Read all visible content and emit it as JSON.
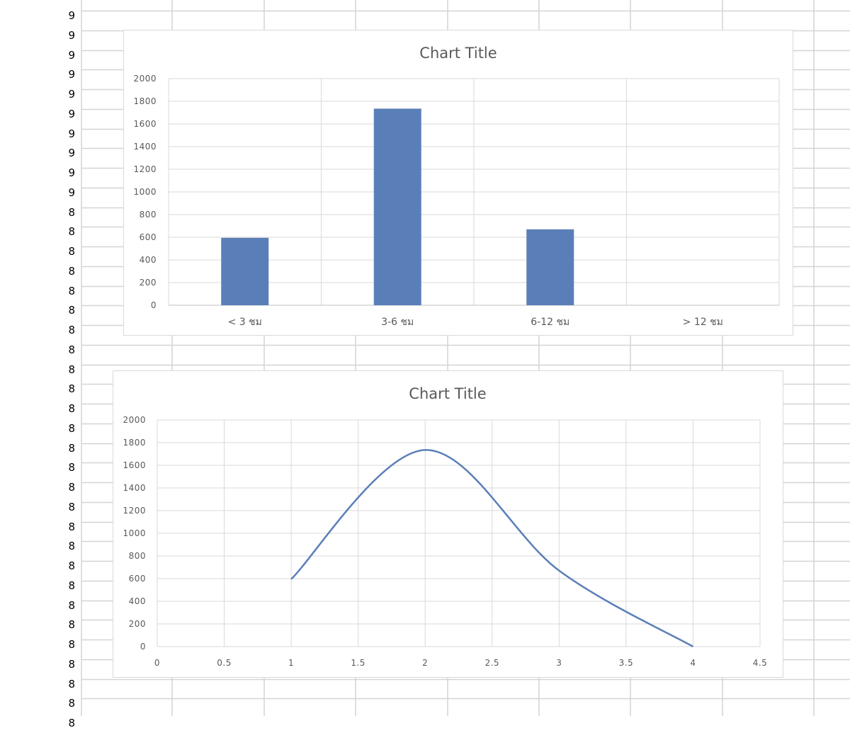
{
  "colors": {
    "series": "#5a7fb8",
    "gridline": "#d9d9d9",
    "sheet_grid": "#d4d4d4",
    "text": "#595959"
  },
  "sheet": {
    "row_numbers": [
      "9",
      "9",
      "9",
      "9",
      "9",
      "9",
      "9",
      "9",
      "9",
      "9",
      "8",
      "8",
      "8",
      "8",
      "8",
      "8",
      "8",
      "8",
      "8",
      "8",
      "8",
      "8",
      "8",
      "8",
      "8",
      "8",
      "8",
      "8",
      "8",
      "8",
      "8",
      "8",
      "8",
      "8",
      "8",
      "8",
      "8"
    ]
  },
  "chart_data": [
    {
      "type": "bar",
      "title": "Chart Title",
      "categories": [
        "< 3 ชม",
        "3-6 ชม",
        "6-12 ชม",
        "> 12 ชม"
      ],
      "values": [
        595,
        1735,
        670,
        0
      ],
      "ylim": [
        0,
        2000
      ],
      "yticks": [
        "0",
        "200",
        "400",
        "600",
        "800",
        "1000",
        "1200",
        "1400",
        "1600",
        "1800",
        "2000"
      ],
      "grid": true,
      "legend": "none",
      "color": "#5a7fb8"
    },
    {
      "type": "scatter",
      "title": "Chart Title",
      "smooth": true,
      "x": [
        1,
        2,
        3,
        4
      ],
      "y": [
        595,
        1735,
        670,
        0
      ],
      "xlim": [
        0,
        4.5
      ],
      "ylim": [
        0,
        2000
      ],
      "xticks": [
        "0",
        "0.5",
        "1",
        "1.5",
        "2",
        "2.5",
        "3",
        "3.5",
        "4",
        "4.5"
      ],
      "yticks": [
        "0",
        "200",
        "400",
        "600",
        "800",
        "1000",
        "1200",
        "1400",
        "1600",
        "1800",
        "2000"
      ],
      "grid": true,
      "legend": "none",
      "color": "#5a7fb8"
    }
  ]
}
